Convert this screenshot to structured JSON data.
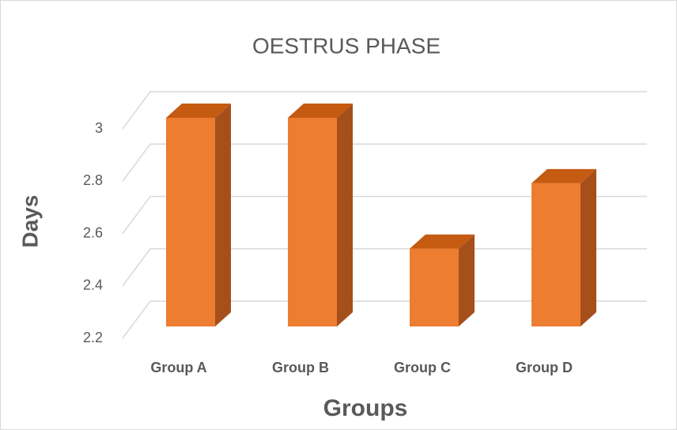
{
  "chart_data": {
    "type": "bar",
    "title": "OESTRUS PHASE",
    "x_label": "Groups",
    "y_label": "Days",
    "categories": [
      "Group A",
      "Group B",
      "Group C",
      "Group D"
    ],
    "values": [
      3,
      3,
      2.5,
      2.75
    ],
    "color": "#ed7d31",
    "ylim": [
      2.2,
      3
    ],
    "yticks": [
      2.2,
      2.4,
      2.6,
      2.8,
      3
    ],
    "grid": true
  }
}
